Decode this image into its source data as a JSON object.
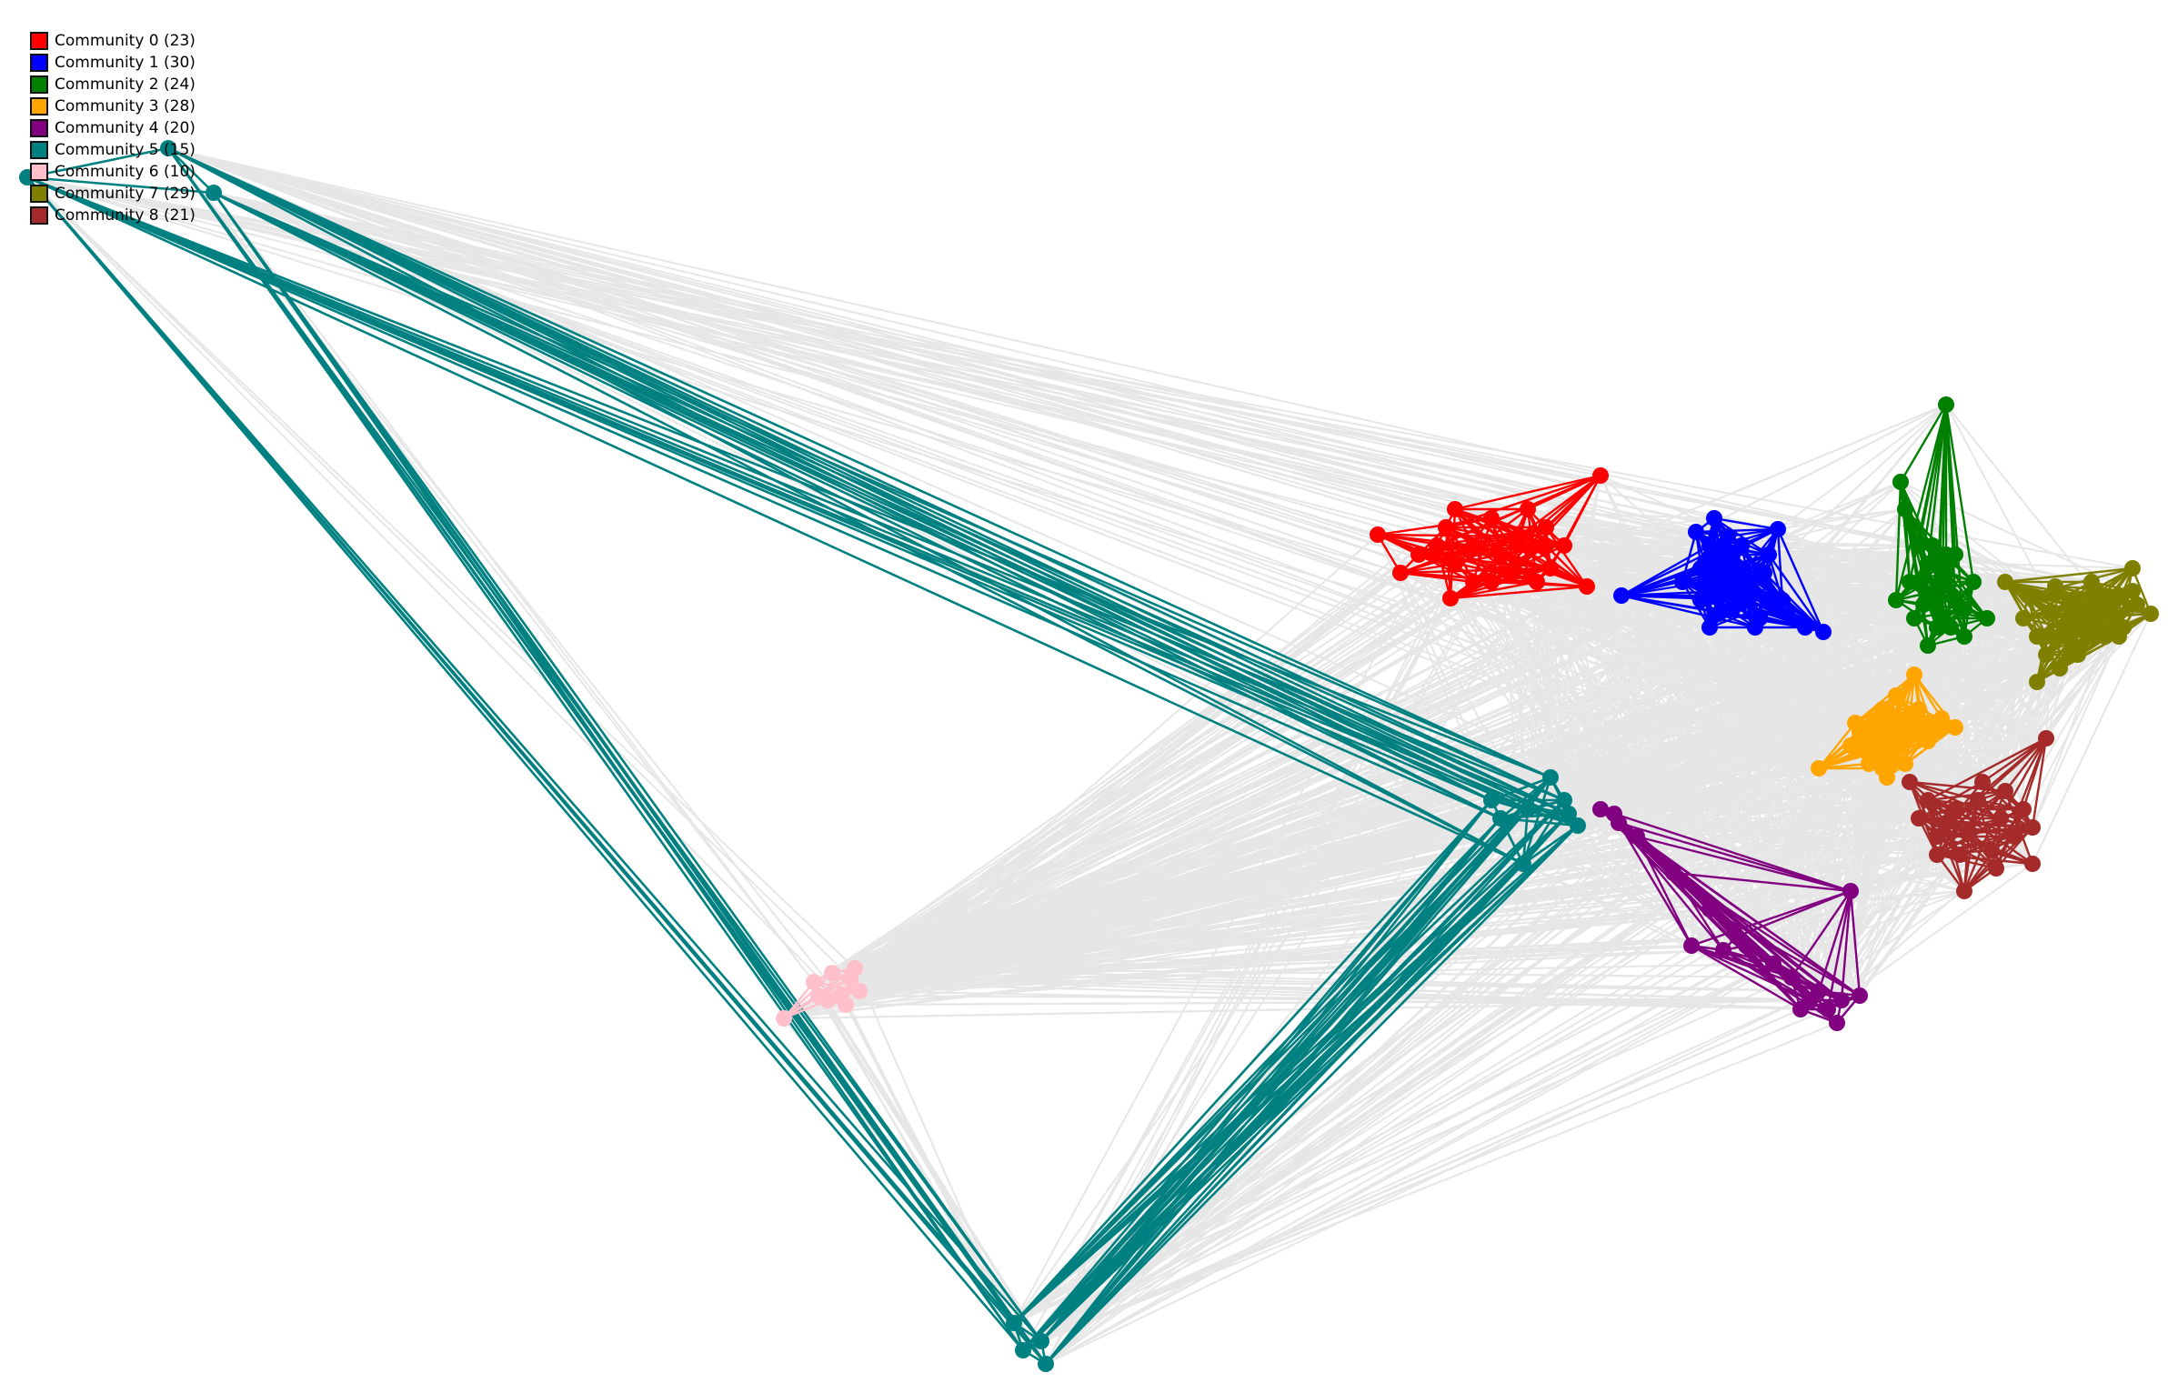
{
  "chart_data": {
    "type": "network",
    "title": "",
    "background_edge_color": "#e6e6e6",
    "communities": [
      {
        "id": 0,
        "label": "Community 0 (23)",
        "size": 23,
        "color": "#ff0000"
      },
      {
        "id": 1,
        "label": "Community 1 (30)",
        "size": 30,
        "color": "#0000ff"
      },
      {
        "id": 2,
        "label": "Community 2 (24)",
        "size": 24,
        "color": "#008000"
      },
      {
        "id": 3,
        "label": "Community 3 (28)",
        "size": 28,
        "color": "#ffa500"
      },
      {
        "id": 4,
        "label": "Community 4 (20)",
        "size": 20,
        "color": "#800080"
      },
      {
        "id": 5,
        "label": "Community 5 (15)",
        "size": 15,
        "color": "#008080"
      },
      {
        "id": 6,
        "label": "Community 6 (10)",
        "size": 10,
        "color": "#ffc0cb"
      },
      {
        "id": 7,
        "label": "Community 7 (29)",
        "size": 29,
        "color": "#808000"
      },
      {
        "id": 8,
        "label": "Community 8 (21)",
        "size": 21,
        "color": "#a52a2a"
      }
    ],
    "legend_position": "top-left"
  }
}
